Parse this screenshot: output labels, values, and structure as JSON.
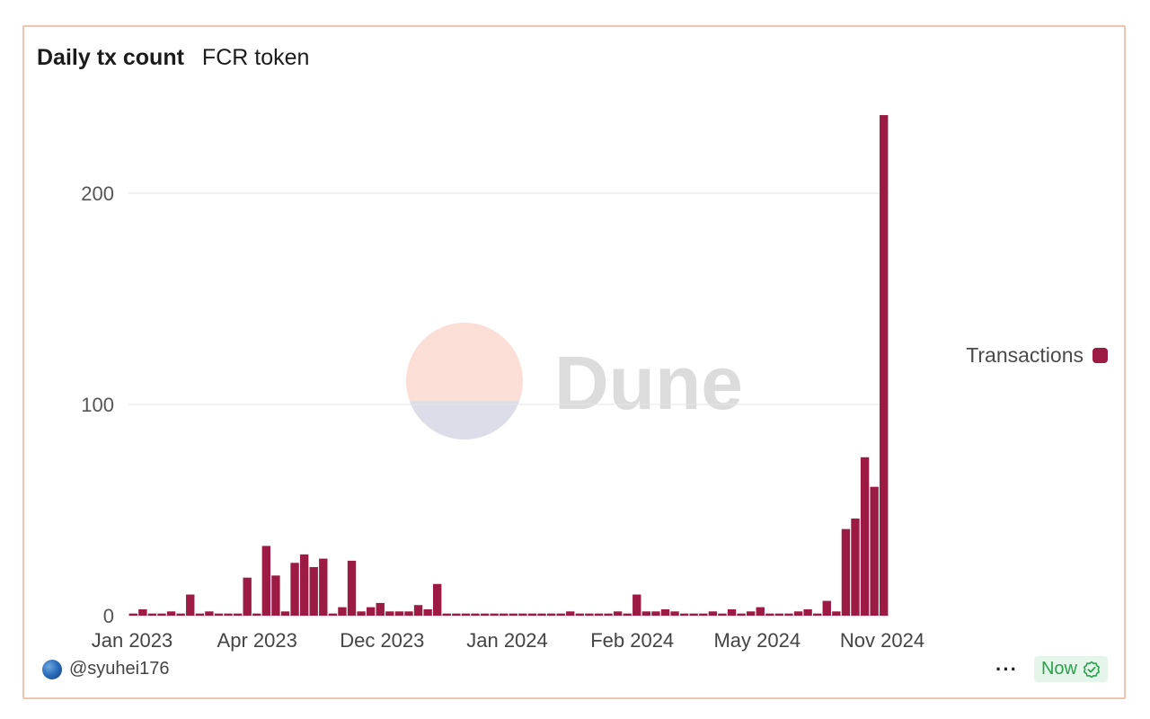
{
  "header": {
    "title": "Daily tx count",
    "subtitle": "FCR token"
  },
  "watermark": {
    "text": "Dune"
  },
  "legend": {
    "label": "Transactions",
    "color": "#9b1b45"
  },
  "footer": {
    "author": "@syuhei176",
    "more_label": "···",
    "status_label": "Now"
  },
  "colors": {
    "bar": "#9b1b45",
    "grid": "#e6e6e6",
    "card_border": "#f1c4b0",
    "status_green": "#2aa14d"
  },
  "chart_data": {
    "type": "bar",
    "title": "Daily tx count",
    "subtitle": "FCR token",
    "xlabel": "",
    "ylabel": "",
    "ylim": [
      0,
      240
    ],
    "yticks": [
      0,
      100,
      200
    ],
    "xtick_labels": [
      "Jan 2023",
      "Apr 2023",
      "Dec 2023",
      "Jan 2024",
      "Feb 2024",
      "May 2024",
      "Nov 2024"
    ],
    "series": [
      {
        "name": "Transactions",
        "values": [
          1,
          3,
          1,
          1,
          2,
          1,
          10,
          1,
          2,
          1,
          1,
          1,
          18,
          1,
          33,
          19,
          2,
          25,
          29,
          23,
          27,
          1,
          4,
          26,
          2,
          4,
          6,
          2,
          2,
          2,
          5,
          3,
          15,
          1,
          1,
          1,
          1,
          1,
          1,
          1,
          1,
          1,
          1,
          1,
          1,
          1,
          2,
          1,
          1,
          1,
          1,
          2,
          1,
          10,
          2,
          2,
          3,
          2,
          1,
          1,
          1,
          2,
          1,
          3,
          1,
          2,
          4,
          1,
          1,
          1,
          2,
          3,
          1,
          7,
          2,
          41,
          46,
          75,
          61,
          237
        ]
      }
    ]
  }
}
